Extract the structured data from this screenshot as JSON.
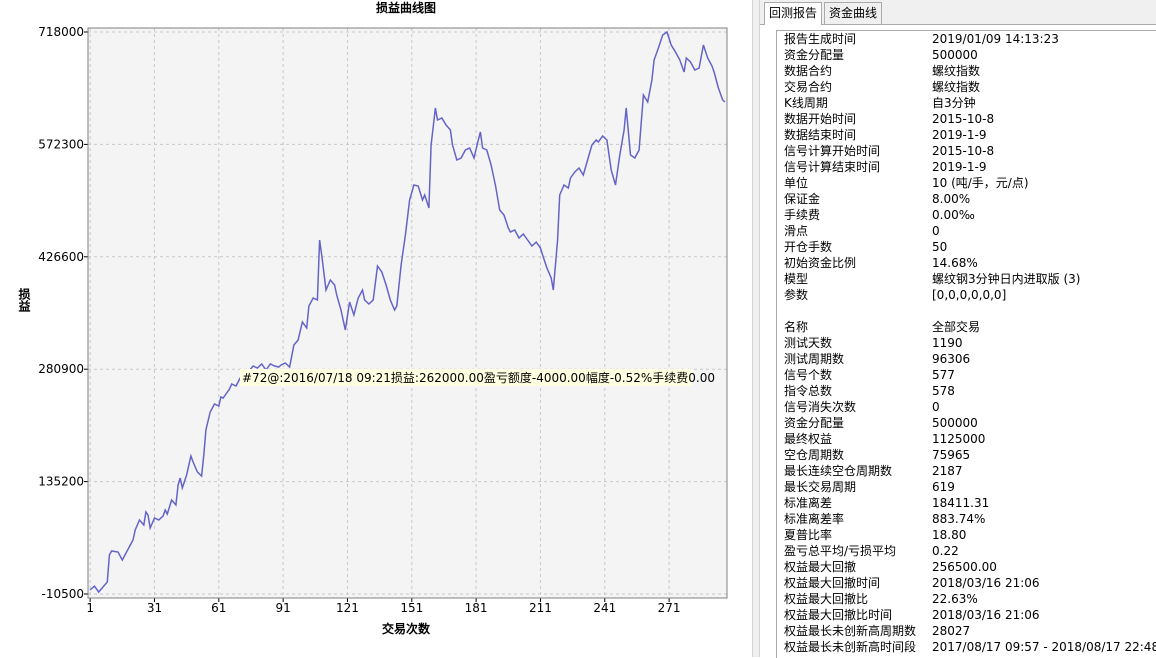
{
  "chart_data": {
    "type": "line",
    "title": "损益曲线图",
    "x_label": "交易次数",
    "y_label": "损益",
    "annotation": "#72@:2016/07/18 09:21损益:262000.00盈亏额度-4000.00幅度-0.52%手续费0.00",
    "color": "#6464c8",
    "grid": true,
    "xlim": [
      0,
      298
    ],
    "xticks": [
      1,
      31,
      61,
      91,
      121,
      151,
      181,
      211,
      241,
      271
    ],
    "ylim": [
      -10500,
      718000
    ],
    "yticks": [
      -10500,
      135200,
      280900,
      426600,
      572300,
      718000
    ],
    "x": [
      1,
      3,
      5,
      7,
      9,
      10,
      11,
      14,
      16,
      19,
      21,
      22,
      24,
      26,
      27,
      28,
      29,
      31,
      33,
      35,
      36,
      37,
      39,
      41,
      42,
      43,
      44,
      46,
      48,
      49,
      51,
      53,
      54,
      55,
      57,
      59,
      61,
      62,
      63,
      65,
      66,
      67,
      69,
      71,
      72,
      74,
      75,
      77,
      79,
      81,
      83,
      85,
      87,
      89,
      90,
      92,
      94,
      96,
      98,
      100,
      102,
      103,
      105,
      107,
      108,
      109,
      111,
      113,
      115,
      116,
      118,
      120,
      122,
      124,
      126,
      128,
      129,
      131,
      133,
      135,
      137,
      139,
      141,
      143,
      144,
      146,
      148,
      150,
      152,
      154,
      156,
      157,
      159,
      160,
      162,
      163,
      165,
      167,
      169,
      170,
      172,
      174,
      176,
      178,
      180,
      182,
      183,
      184,
      186,
      188,
      190,
      192,
      194,
      196,
      197,
      199,
      201,
      203,
      205,
      207,
      209,
      211,
      212,
      214,
      216,
      217,
      219,
      220,
      222,
      224,
      225,
      227,
      229,
      231,
      233,
      235,
      237,
      238,
      240,
      242,
      244,
      246,
      248,
      250,
      251,
      253,
      255,
      257,
      259,
      261,
      263,
      264,
      266,
      268,
      270,
      272,
      274,
      276,
      278,
      279,
      281,
      283,
      285,
      287,
      289,
      291,
      292,
      294,
      296,
      297
    ],
    "values": [
      -5300,
      -200,
      -7900,
      -1400,
      5000,
      40000,
      45200,
      43900,
      33600,
      49100,
      59500,
      72400,
      85400,
      78900,
      95800,
      91900,
      75000,
      88000,
      85400,
      90600,
      98400,
      93200,
      111300,
      104900,
      130800,
      139900,
      126900,
      143700,
      168400,
      160600,
      147600,
      142400,
      169700,
      202100,
      225400,
      235800,
      233200,
      244900,
      243500,
      251300,
      255200,
      261700,
      259100,
      269500,
      262000,
      277300,
      278500,
      285000,
      282500,
      287600,
      279800,
      287600,
      285000,
      283700,
      286300,
      288900,
      283700,
      312300,
      318700,
      342100,
      334300,
      362800,
      373200,
      370600,
      448400,
      428900,
      383600,
      396500,
      390000,
      377100,
      357600,
      331700,
      368000,
      351100,
      373200,
      383600,
      370600,
      365400,
      370600,
      414700,
      406900,
      390000,
      370600,
      357600,
      362800,
      416000,
      454900,
      500200,
      519700,
      518400,
      500200,
      506700,
      489900,
      571500,
      619500,
      603900,
      606500,
      597400,
      591000,
      571500,
      552100,
      554700,
      565000,
      567600,
      554700,
      578000,
      588400,
      567600,
      565000,
      545600,
      519700,
      487300,
      480800,
      463900,
      458700,
      461300,
      451000,
      456100,
      448400,
      440600,
      445700,
      438100,
      428900,
      412100,
      399100,
      383600,
      448400,
      506700,
      519700,
      515800,
      528700,
      536500,
      541700,
      532600,
      552100,
      571500,
      578000,
      575400,
      583200,
      578000,
      539100,
      519700,
      558600,
      591000,
      619500,
      558600,
      554700,
      565000,
      636300,
      627300,
      655800,
      681700,
      697300,
      714100,
      718000,
      701100,
      692100,
      681700,
      666100,
      684300,
      679100,
      668700,
      671300,
      701100,
      684300,
      673900,
      666100,
      645400,
      629900,
      627300
    ]
  },
  "report": {
    "tabs": [
      "回测报告",
      "资金曲线"
    ],
    "sections": [
      [
        [
          "报告生成时间",
          "2019/01/09 14:13:23"
        ],
        [
          "资金分配量",
          "500000"
        ],
        [
          "数据合约",
          "螺纹指数"
        ],
        [
          "交易合约",
          "螺纹指数"
        ],
        [
          "K线周期",
          "自3分钟"
        ],
        [
          "数据开始时间",
          "2015-10-8"
        ],
        [
          "数据结束时间",
          "2019-1-9"
        ],
        [
          "信号计算开始时间",
          "2015-10-8"
        ],
        [
          "信号计算结束时间",
          "2019-1-9"
        ],
        [
          "单位",
          "10 (吨/手，元/点)"
        ],
        [
          "保证金",
          "8.00%"
        ],
        [
          "手续费",
          "0.00‰"
        ],
        [
          "滑点",
          "0"
        ],
        [
          "开仓手数",
          "50"
        ],
        [
          "初始资金比例",
          "14.68%"
        ],
        [
          "模型",
          "螺纹钢3分钟日内进取版 (3)"
        ],
        [
          "参数",
          "[0,0,0,0,0,0]"
        ]
      ],
      [
        [
          "名称",
          "全部交易"
        ],
        [
          "测试天数",
          "1190"
        ],
        [
          "测试周期数",
          "96306"
        ],
        [
          "信号个数",
          "577"
        ],
        [
          "指令总数",
          "578"
        ],
        [
          "信号消失次数",
          "0"
        ],
        [
          "资金分配量",
          "500000"
        ],
        [
          "最终权益",
          "1125000"
        ],
        [
          "空仓周期数",
          "75965"
        ],
        [
          "最长连续空仓周期数",
          "2187"
        ],
        [
          "最长交易周期",
          "619"
        ],
        [
          "标准离差",
          "18411.31"
        ],
        [
          "标准离差率",
          "883.74%"
        ],
        [
          "夏普比率",
          "18.80"
        ],
        [
          "盈亏总平均/亏损平均",
          "0.22"
        ],
        [
          "权益最大回撤",
          "256500.00"
        ],
        [
          "权益最大回撤时间",
          "2018/03/16 21:06"
        ],
        [
          "权益最大回撤比",
          "22.63%"
        ],
        [
          "权益最大回撤比时间",
          "2018/03/16 21:06"
        ],
        [
          "权益最长未创新高周期数",
          "28027"
        ],
        [
          "权益最长未创新高时间段",
          "2017/08/17 09:57 - 2018/08/17 22:48"
        ]
      ]
    ]
  }
}
